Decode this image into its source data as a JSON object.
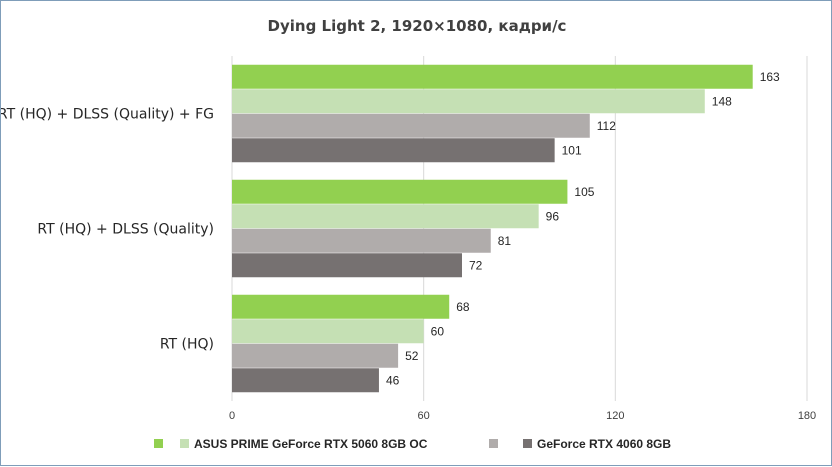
{
  "chart_data": {
    "type": "bar",
    "orientation": "horizontal",
    "title": "Dying Light 2, 1920×1080, кадри/с",
    "categories": [
      "RT (HQ) + DLSS (Quality) + FG",
      "RT (HQ) + DLSS (Quality)",
      "RT (HQ)"
    ],
    "series": [
      {
        "name": "",
        "color": "#92d050",
        "values": [
          163,
          105,
          68
        ]
      },
      {
        "name": "ASUS PRIME GeForce RTX 5060 8GB OC",
        "color": "#c5e0b4",
        "values": [
          148,
          96,
          60
        ]
      },
      {
        "name": "",
        "color": "#b0acab",
        "values": [
          112,
          81,
          52
        ]
      },
      {
        "name": "GeForce RTX 4060 8GB",
        "color": "#767171",
        "values": [
          101,
          72,
          46
        ]
      }
    ],
    "xlim": [
      0,
      180
    ],
    "x_ticks": [
      "0",
      "60",
      "120",
      "180"
    ],
    "grid": true,
    "legend_position": "bottom"
  }
}
